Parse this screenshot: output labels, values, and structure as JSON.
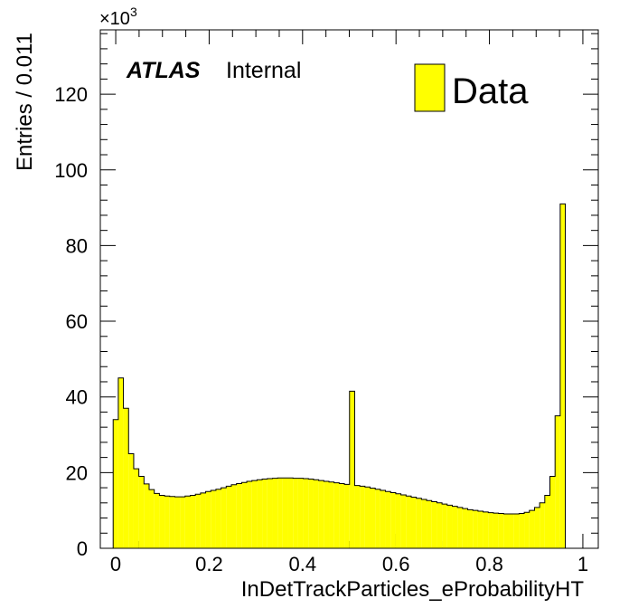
{
  "chart_data": {
    "type": "bar",
    "title": "",
    "xlabel": "InDetTrackParticles_eProbabilityHT",
    "ylabel": "Entries / 0.011",
    "y_exponent_label": "×10³",
    "y_exponent_base": "×10",
    "y_exponent_power": "3",
    "label_primary": "ATLAS",
    "label_secondary": "Internal",
    "xlim": [
      -0.033,
      1.033
    ],
    "ylim": [
      0,
      137
    ],
    "bin_width": 0.011,
    "x_start": -0.0055,
    "x_ticks": [
      0,
      0.2,
      0.4,
      0.6,
      0.8,
      1
    ],
    "x_tick_labels": [
      "0",
      "0.2",
      "0.4",
      "0.6",
      "0.8",
      "1"
    ],
    "y_ticks": [
      0,
      20,
      40,
      60,
      80,
      100,
      120
    ],
    "y_tick_labels": [
      "0",
      "20",
      "40",
      "60",
      "80",
      "100",
      "120"
    ],
    "fill_color": "#ffff00",
    "line_color": "#000000",
    "legend_placement": "top-right",
    "series": [
      {
        "name": "Data",
        "values": [
          34.0,
          45.0,
          37.0,
          25.0,
          21.0,
          19.0,
          17.0,
          15.5,
          14.5,
          14.0,
          13.8,
          13.7,
          13.6,
          13.6,
          13.8,
          14.0,
          14.3,
          14.6,
          15.0,
          15.3,
          15.6,
          16.0,
          16.4,
          16.8,
          17.1,
          17.4,
          17.7,
          17.9,
          18.1,
          18.3,
          18.4,
          18.5,
          18.6,
          18.6,
          18.6,
          18.5,
          18.5,
          18.4,
          18.3,
          18.1,
          17.9,
          17.7,
          17.5,
          17.3,
          17.1,
          16.9,
          41.5,
          16.6,
          16.4,
          16.2,
          15.9,
          15.6,
          15.3,
          15.0,
          14.7,
          14.4,
          14.1,
          13.8,
          13.5,
          13.2,
          12.9,
          12.6,
          12.3,
          12.0,
          11.7,
          11.4,
          11.1,
          10.8,
          10.5,
          10.2,
          10.0,
          9.8,
          9.6,
          9.4,
          9.3,
          9.2,
          9.1,
          9.1,
          9.1,
          9.2,
          9.5,
          10.0,
          10.8,
          12.0,
          14.0,
          19.0,
          35.0,
          91.0
        ]
      }
    ]
  }
}
